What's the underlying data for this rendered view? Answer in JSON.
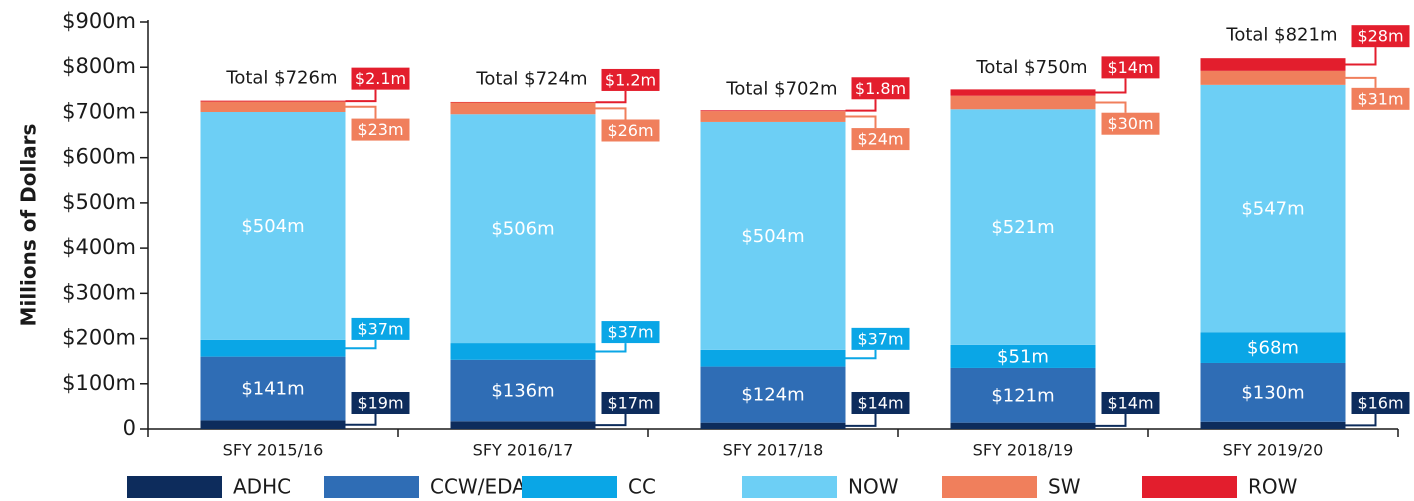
{
  "chart_data": {
    "type": "stacked-bar",
    "y_label": "Millions of Dollars",
    "categories": [
      "SFY 2015/16",
      "SFY 2016/17",
      "SFY 2017/18",
      "SFY 2018/19",
      "SFY 2019/20"
    ],
    "series": [
      {
        "name": "ADHC",
        "color": "#0d2c5c",
        "values": [
          19,
          17,
          14,
          14,
          16
        ],
        "value_labels": [
          "$19m",
          "$17m",
          "$14m",
          "$14m",
          "$16m"
        ]
      },
      {
        "name": "CCW/EDA",
        "color": "#2f6db5",
        "values": [
          141,
          136,
          124,
          121,
          130
        ],
        "value_labels": [
          "$141m",
          "$136m",
          "$124m",
          "$121m",
          "$130m"
        ]
      },
      {
        "name": "CC",
        "color": "#0aa6e6",
        "values": [
          37,
          37,
          37,
          51,
          68
        ],
        "value_labels": [
          "$37m",
          "$37m",
          "$37m",
          "$51m",
          "$68m"
        ]
      },
      {
        "name": "NOW",
        "color": "#6dcff5",
        "values": [
          504,
          506,
          504,
          521,
          547
        ],
        "value_labels": [
          "$504m",
          "$506m",
          "$504m",
          "$521m",
          "$547m"
        ]
      },
      {
        "name": "SW",
        "color": "#f07f5c",
        "values": [
          23,
          26,
          24,
          30,
          31
        ],
        "value_labels": [
          "$23m",
          "$26m",
          "$24m",
          "$30m",
          "$31m"
        ]
      },
      {
        "name": "ROW",
        "color": "#e31e2d",
        "values": [
          2.1,
          1.2,
          1.8,
          14,
          28
        ],
        "value_labels": [
          "$2.1m",
          "$1.2m",
          "$1.8m",
          "$14m",
          "$28m"
        ]
      }
    ],
    "totals": [
      726,
      724,
      702,
      750,
      821
    ],
    "total_labels": [
      "Total $726m",
      "Total $724m",
      "Total $702m",
      "Total $750m",
      "Total $821m"
    ],
    "ylim": [
      0,
      900
    ],
    "yticks": [
      0,
      {
        "value": 100,
        "label": "$100m"
      },
      {
        "value": 200,
        "label": "$200m"
      },
      {
        "value": 300,
        "label": "$300m"
      },
      {
        "value": 400,
        "label": "$400m"
      },
      {
        "value": 500,
        "label": "$500m"
      },
      {
        "value": 600,
        "label": "$600m"
      },
      {
        "value": 700,
        "label": "$700m"
      },
      {
        "value": 800,
        "label": "$800m"
      },
      {
        "value": 900,
        "label": "$900m"
      }
    ],
    "legend": "bottom"
  }
}
